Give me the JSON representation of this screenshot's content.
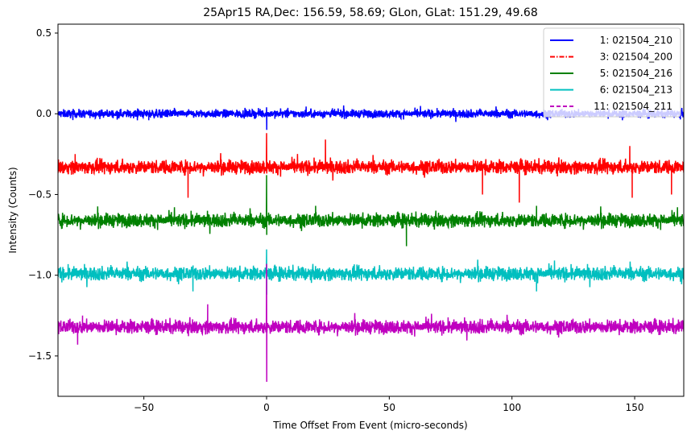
{
  "chart_data": {
    "type": "line",
    "title": "25Apr15 RA,Dec:  156.59,  58.69; GLon, GLat:  151.29,  49.68",
    "xlabel": "Time Offset From Event (micro-seconds)",
    "ylabel": "Intensity (Counts)",
    "xlim": [
      -85,
      170
    ],
    "ylim": [
      -1.75,
      0.555
    ],
    "xticks": [
      -50,
      0,
      50,
      100,
      150
    ],
    "xtick_labels": [
      "−50",
      "0",
      "50",
      "100",
      "150"
    ],
    "yticks": [
      0.5,
      0.0,
      -0.5,
      -1.0,
      -1.5
    ],
    "ytick_labels": [
      "0.5",
      "0.0",
      "−0.5",
      "−1.0",
      "−1.5"
    ],
    "grid": false,
    "legend_position": "upper right",
    "event_time": 0,
    "series": [
      {
        "name": "1: 021504_210",
        "color": "#0000ff",
        "linestyle": "solid",
        "baseline": 0.0,
        "noise": 0.018,
        "spike_min": -0.1,
        "spike_max": 0.04,
        "glitches": [
          [
            -48,
            -0.04
          ],
          [
            145,
            -0.04
          ],
          [
            98,
            0.03
          ]
        ]
      },
      {
        "name": "3: 021504_200",
        "color": "#ff0000",
        "linestyle": "dashdot",
        "baseline": -0.33,
        "noise": 0.03,
        "spike_min": -0.37,
        "spike_max": -0.12,
        "glitches": [
          [
            -32,
            -0.52
          ],
          [
            24,
            -0.16
          ],
          [
            88,
            -0.5
          ],
          [
            103,
            -0.55
          ],
          [
            149,
            -0.52
          ],
          [
            165,
            -0.5
          ],
          [
            -78,
            -0.25
          ],
          [
            148,
            -0.2
          ]
        ]
      },
      {
        "name": "5: 021504_216",
        "color": "#008000",
        "linestyle": "solid",
        "baseline": -0.66,
        "noise": 0.03,
        "spike_min": -0.75,
        "spike_max": -0.38,
        "glitches": [
          [
            57,
            -0.82
          ],
          [
            20,
            -0.57
          ],
          [
            110,
            -0.57
          ]
        ]
      },
      {
        "name": "6: 021504_213",
        "color": "#00bfbf",
        "linestyle": "solid",
        "baseline": -0.99,
        "noise": 0.03,
        "spike_min": -1.12,
        "spike_max": -0.84,
        "glitches": [
          [
            -30,
            -1.1
          ],
          [
            110,
            -1.1
          ]
        ]
      },
      {
        "name": "11: 021504_211",
        "color": "#bf00bf",
        "linestyle": "dashed",
        "baseline": -1.32,
        "noise": 0.03,
        "spike_min": -1.66,
        "spike_max": -0.93,
        "glitches": [
          [
            -77,
            -1.43
          ],
          [
            -24,
            -1.18
          ],
          [
            -75,
            -1.25
          ],
          [
            87,
            -1.27
          ]
        ]
      }
    ]
  }
}
